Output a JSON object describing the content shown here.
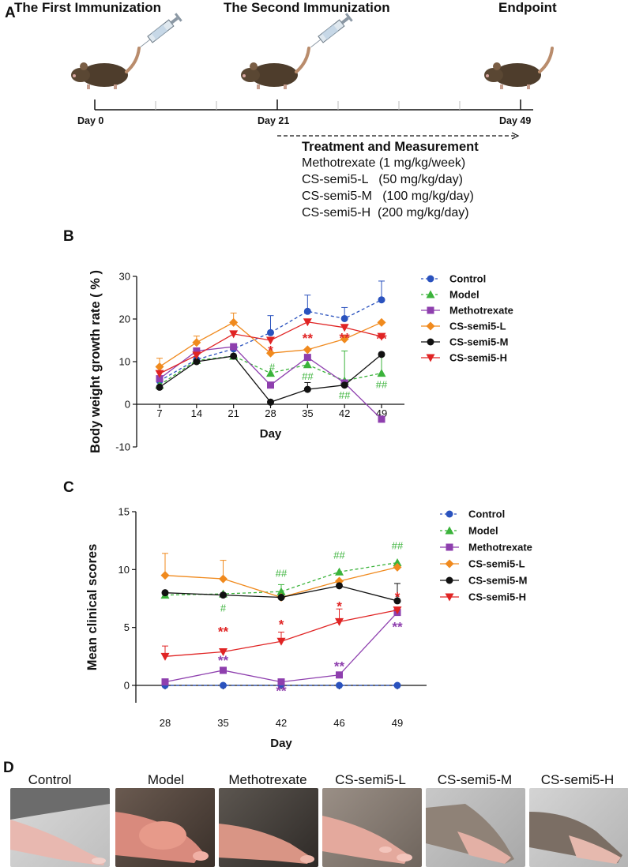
{
  "panel_a": {
    "letter": "A",
    "titles": [
      "The First Immunization",
      "The Second Immunization",
      "Endpoint"
    ],
    "days": [
      "Day 0",
      "Day 21",
      "Day 49"
    ],
    "treatment_heading": "Treatment and Measurement",
    "treatments": [
      "Methotrexate (1 mg/kg/week)",
      "CS-semi5-L   (50 mg/kg/day)",
      "CS-semi5-M   (100 mg/kg/day)",
      "CS-semi5-H  (200 mg/kg/day)"
    ]
  },
  "panel_b": {
    "letter": "B"
  },
  "panel_c": {
    "letter": "C"
  },
  "panel_d": {
    "letter": "D",
    "labels": [
      "Control",
      "Model",
      "Methotrexate",
      "CS-semi5-L",
      "CS-semi5-M",
      "CS-semi5-H"
    ]
  },
  "colors": {
    "Control": "#2a52be",
    "Model": "#3bb33b",
    "Methotrexate": "#8e3fae",
    "CS-semi5-L": "#f08a1e",
    "CS-semi5-M": "#111111",
    "CS-semi5-H": "#e02424"
  },
  "chart_data": [
    {
      "id": "B",
      "type": "line",
      "ylabel": "Body weight growth rate ( % )",
      "xlabel": "Day",
      "x": [
        7,
        14,
        21,
        28,
        35,
        42,
        49
      ],
      "xticks": [
        "7",
        "14",
        "21",
        "28",
        "35",
        "42",
        "49"
      ],
      "ylim": [
        -10,
        30
      ],
      "yticks": [
        -10,
        0,
        10,
        20,
        30
      ],
      "legend": "top-right",
      "series": [
        {
          "name": "Control",
          "marker": "circle",
          "dashed": true,
          "values": [
            5.5,
            10.5,
            13.0,
            16.8,
            21.8,
            20.1,
            24.5
          ],
          "err": [
            0,
            0,
            0,
            4.0,
            3.8,
            2.6,
            4.4
          ]
        },
        {
          "name": "Model",
          "marker": "triangle",
          "dashed": true,
          "values": [
            4.5,
            10.3,
            11.3,
            7.3,
            9.3,
            5.5,
            7.3
          ],
          "err": [
            0,
            0,
            0,
            0,
            0,
            7.0,
            4.0
          ]
        },
        {
          "name": "Methotrexate",
          "marker": "square",
          "dashed": false,
          "values": [
            6.0,
            12.5,
            13.5,
            4.5,
            11.0,
            5.0,
            -3.5
          ],
          "err": [
            0,
            0,
            0,
            0,
            0,
            0,
            0
          ]
        },
        {
          "name": "CS-semi5-L",
          "marker": "diamond",
          "dashed": false,
          "values": [
            8.8,
            14.5,
            19.2,
            12.0,
            12.8,
            15.3,
            19.2
          ],
          "err": [
            2.0,
            1.5,
            2.2,
            0,
            0,
            0,
            0
          ]
        },
        {
          "name": "CS-semi5-M",
          "marker": "circle",
          "dashed": false,
          "values": [
            4.0,
            10.0,
            11.3,
            0.5,
            3.5,
            4.5,
            11.7
          ],
          "err": [
            0,
            0,
            0,
            0,
            1.6,
            0,
            0
          ]
        },
        {
          "name": "CS-semi5-H",
          "marker": "triangle-down",
          "dashed": false,
          "values": [
            7.2,
            11.5,
            16.5,
            15.0,
            19.3,
            18.0,
            15.9
          ],
          "err": [
            0,
            0,
            0,
            0,
            0,
            0,
            0
          ]
        }
      ],
      "annotations": [
        {
          "text": "*",
          "x": 28,
          "y": 12.5,
          "color": "#e02424"
        },
        {
          "text": "#",
          "x": 28.3,
          "y": 8.8,
          "color": "#3bb33b"
        },
        {
          "text": "**",
          "x": 35,
          "y": 15.4,
          "color": "#e02424"
        },
        {
          "text": "##",
          "x": 35,
          "y": 6.7,
          "color": "#3bb33b"
        },
        {
          "text": "**",
          "x": 42,
          "y": 15.5,
          "color": "#e02424"
        },
        {
          "text": "##",
          "x": 42,
          "y": 2.2,
          "color": "#3bb33b"
        },
        {
          "text": "**",
          "x": 49,
          "y": 15.3,
          "color": "#e02424"
        },
        {
          "text": "##",
          "x": 49,
          "y": 4.7,
          "color": "#3bb33b"
        }
      ]
    },
    {
      "id": "C",
      "type": "line",
      "ylabel": "Mean clinical scores",
      "xlabel": "Day",
      "x": [
        28,
        35,
        42,
        46,
        49
      ],
      "xticks": [
        "28",
        "35",
        "42",
        "46",
        "49"
      ],
      "ylim": [
        -1.5,
        15
      ],
      "yticks": [
        0,
        5,
        10,
        15
      ],
      "legend": "top-right",
      "series": [
        {
          "name": "Control",
          "marker": "circle",
          "dashed": true,
          "values": [
            0,
            0,
            0,
            0,
            0
          ],
          "err": [
            0,
            0,
            0,
            0,
            0
          ]
        },
        {
          "name": "Model",
          "marker": "triangle",
          "dashed": true,
          "values": [
            7.8,
            7.9,
            8.1,
            9.8,
            10.6
          ],
          "err": [
            0,
            0,
            0.6,
            0,
            0
          ]
        },
        {
          "name": "Methotrexate",
          "marker": "square",
          "dashed": false,
          "values": [
            0.3,
            1.3,
            0.3,
            0.9,
            6.3
          ],
          "err": [
            0,
            0,
            0,
            0,
            0
          ]
        },
        {
          "name": "CS-semi5-L",
          "marker": "diamond",
          "dashed": false,
          "values": [
            9.5,
            9.2,
            7.6,
            9.0,
            10.2
          ],
          "err": [
            1.9,
            1.6,
            0,
            0,
            0
          ]
        },
        {
          "name": "CS-semi5-M",
          "marker": "circle",
          "dashed": false,
          "values": [
            8.0,
            7.8,
            7.6,
            8.6,
            7.3
          ],
          "err": [
            0,
            0,
            0,
            0,
            1.5
          ]
        },
        {
          "name": "CS-semi5-H",
          "marker": "triangle-down",
          "dashed": false,
          "values": [
            2.5,
            2.9,
            3.8,
            5.5,
            6.5
          ],
          "err": [
            0.9,
            0,
            0.8,
            1.1,
            0
          ]
        }
      ],
      "annotations": [
        {
          "text": "#",
          "x": 35,
          "y": 6.7,
          "color": "#3bb33b"
        },
        {
          "text": "##",
          "x": 42,
          "y": 9.7,
          "color": "#3bb33b"
        },
        {
          "text": "##",
          "x": 46,
          "y": 11.3,
          "color": "#3bb33b"
        },
        {
          "text": "##",
          "x": 49,
          "y": 12.1,
          "color": "#3bb33b"
        },
        {
          "text": "**",
          "x": 35,
          "y": 4.6,
          "color": "#e02424"
        },
        {
          "text": "**",
          "x": 35,
          "y": 2.1,
          "color": "#8e3fae"
        },
        {
          "text": "*",
          "x": 42,
          "y": 5.2,
          "color": "#e02424"
        },
        {
          "text": "**",
          "x": 42,
          "y": -0.5,
          "color": "#8e3fae"
        },
        {
          "text": "*",
          "x": 46,
          "y": 6.8,
          "color": "#e02424"
        },
        {
          "text": "**",
          "x": 46,
          "y": 1.6,
          "color": "#8e3fae"
        },
        {
          "text": "*",
          "x": 49,
          "y": 7.6,
          "color": "#e02424"
        },
        {
          "text": "**",
          "x": 49,
          "y": 5.0,
          "color": "#8e3fae"
        }
      ]
    }
  ]
}
